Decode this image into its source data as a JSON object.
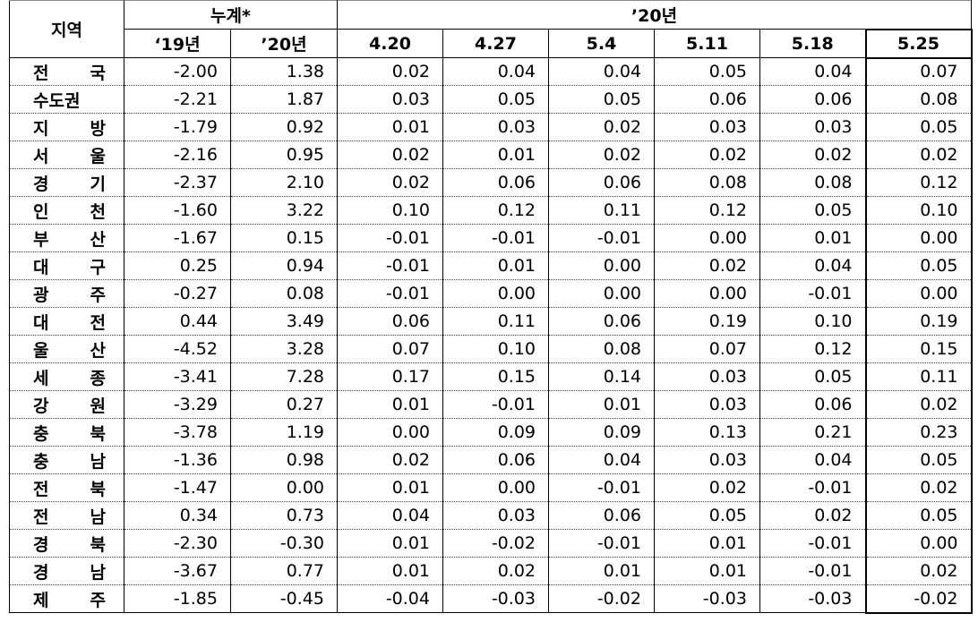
{
  "header": {
    "region": "지역",
    "cumulative": "누계*",
    "year_2020": "’20년",
    "sub_cols": [
      "‘19년",
      "’20년",
      "4.20",
      "4.27",
      "5.4",
      "5.11",
      "5.18",
      "5.25"
    ]
  },
  "rows": [
    {
      "region": "전 국",
      "values": [
        "-2.00",
        "1.38",
        "0.02",
        "0.04",
        "0.04",
        "0.05",
        "0.04",
        "0.07"
      ]
    },
    {
      "region": "수도권",
      "values": [
        "-2.21",
        "1.87",
        "0.03",
        "0.05",
        "0.05",
        "0.06",
        "0.06",
        "0.08"
      ]
    },
    {
      "region": "지 방",
      "values": [
        "-1.79",
        "0.92",
        "0.01",
        "0.03",
        "0.02",
        "0.03",
        "0.03",
        "0.05"
      ]
    },
    {
      "region": "서 울",
      "values": [
        "-2.16",
        "0.95",
        "0.02",
        "0.01",
        "0.02",
        "0.02",
        "0.02",
        "0.02"
      ]
    },
    {
      "region": "경 기",
      "values": [
        "-2.37",
        "2.10",
        "0.02",
        "0.06",
        "0.06",
        "0.08",
        "0.08",
        "0.12"
      ]
    },
    {
      "region": "인 천",
      "values": [
        "-1.60",
        "3.22",
        "0.10",
        "0.12",
        "0.11",
        "0.12",
        "0.05",
        "0.10"
      ]
    },
    {
      "region": "부 산",
      "values": [
        "-1.67",
        "0.15",
        "-0.01",
        "-0.01",
        "-0.01",
        "0.00",
        "0.01",
        "0.00"
      ]
    },
    {
      "region": "대 구",
      "values": [
        "0.25",
        "0.94",
        "-0.01",
        "0.01",
        "0.00",
        "0.02",
        "0.04",
        "0.05"
      ]
    },
    {
      "region": "광 주",
      "values": [
        "-0.27",
        "0.08",
        "-0.01",
        "0.00",
        "0.00",
        "0.00",
        "-0.01",
        "0.00"
      ]
    },
    {
      "region": "대 전",
      "values": [
        "0.44",
        "3.49",
        "0.06",
        "0.11",
        "0.06",
        "0.19",
        "0.10",
        "0.19"
      ]
    },
    {
      "region": "울 산",
      "values": [
        "-4.52",
        "3.28",
        "0.07",
        "0.10",
        "0.08",
        "0.07",
        "0.12",
        "0.15"
      ]
    },
    {
      "region": "세 종",
      "values": [
        "-3.41",
        "7.28",
        "0.17",
        "0.15",
        "0.14",
        "0.03",
        "0.05",
        "0.11"
      ]
    },
    {
      "region": "강 원",
      "values": [
        "-3.29",
        "0.27",
        "0.01",
        "-0.01",
        "0.01",
        "0.03",
        "0.06",
        "0.02"
      ]
    },
    {
      "region": "충 북",
      "values": [
        "-3.78",
        "1.19",
        "0.00",
        "0.09",
        "0.09",
        "0.13",
        "0.21",
        "0.23"
      ]
    },
    {
      "region": "충 남",
      "values": [
        "-1.36",
        "0.98",
        "0.02",
        "0.06",
        "0.04",
        "0.03",
        "0.04",
        "0.05"
      ]
    },
    {
      "region": "전 북",
      "values": [
        "-1.47",
        "0.00",
        "0.01",
        "0.00",
        "-0.01",
        "0.02",
        "-0.01",
        "0.02"
      ]
    },
    {
      "region": "전 남",
      "values": [
        "0.34",
        "0.73",
        "0.04",
        "0.03",
        "0.06",
        "0.05",
        "0.02",
        "0.05"
      ]
    },
    {
      "region": "경 북",
      "values": [
        "-2.30",
        "-0.30",
        "0.01",
        "-0.02",
        "-0.01",
        "0.01",
        "-0.01",
        "0.00"
      ]
    },
    {
      "region": "경 남",
      "values": [
        "-3.67",
        "0.77",
        "0.01",
        "0.02",
        "0.01",
        "0.01",
        "-0.01",
        "0.02"
      ]
    },
    {
      "region": "제 주",
      "values": [
        "-1.85",
        "-0.45",
        "-0.04",
        "-0.03",
        "-0.02",
        "-0.03",
        "-0.03",
        "-0.02"
      ]
    }
  ]
}
